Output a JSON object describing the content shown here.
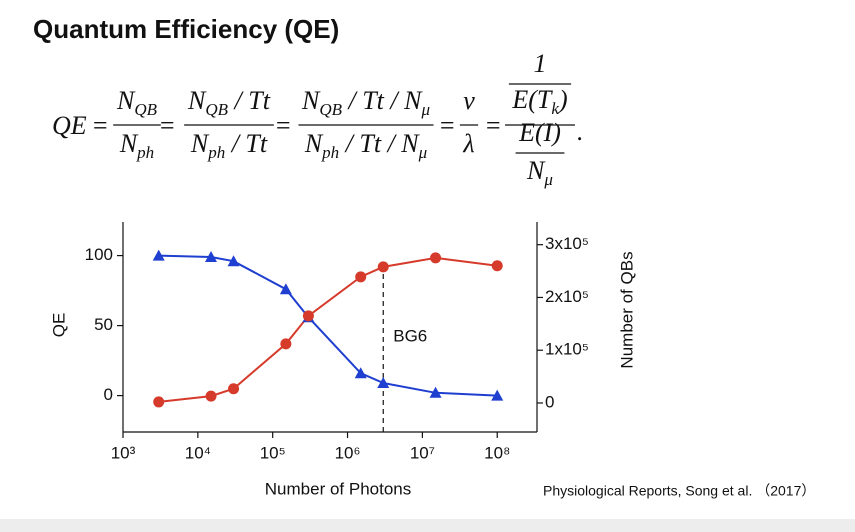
{
  "title": "Quantum Efficiency (QE)",
  "equation": {
    "lhs": "QE",
    "equals": "=",
    "end": ".",
    "terms": [
      {
        "num": [
          {
            "t": "N",
            "sub": "QB"
          }
        ],
        "den": [
          {
            "t": "N",
            "sub": "ph"
          }
        ]
      },
      {
        "num": [
          {
            "t": "N",
            "sub": "QB"
          },
          {
            "t": " / Tt"
          }
        ],
        "den": [
          {
            "t": "N",
            "sub": "ph"
          },
          {
            "t": " / Tt"
          }
        ]
      },
      {
        "num": [
          {
            "t": "N",
            "sub": "QB"
          },
          {
            "t": " / Tt / "
          },
          {
            "t": "N",
            "sub": "μ"
          }
        ],
        "den": [
          {
            "t": "N",
            "sub": "ph"
          },
          {
            "t": " / Tt / "
          },
          {
            "t": "N",
            "sub": "μ"
          }
        ]
      },
      {
        "num": [
          {
            "t": "ν"
          }
        ],
        "den": [
          {
            "t": "λ"
          }
        ]
      },
      {
        "num": {
          "num": [
            {
              "t": "1"
            }
          ],
          "den": [
            {
              "t": "E(T",
              "sub": "k"
            },
            {
              "t": ")"
            }
          ]
        },
        "den": {
          "num": [
            {
              "t": "E(I)"
            }
          ],
          "den": [
            {
              "t": "N",
              "sub": "μ"
            }
          ]
        }
      }
    ]
  },
  "citation": "Physiological Reports, Song et al. （2017）",
  "chart_data": {
    "type": "line",
    "x_label": "Number of Photons",
    "y_label": "QE",
    "y2_label": "Number of QBs",
    "x": [
      3000,
      15000,
      30000,
      150000,
      300000,
      1500000,
      3000000,
      15000000,
      100000000
    ],
    "xscale": "log",
    "xlim": [
      1000,
      340000000
    ],
    "xticks": [
      {
        "value": 1000,
        "label": "10³"
      },
      {
        "value": 10000,
        "label": "10⁴"
      },
      {
        "value": 100000,
        "label": "10⁵"
      },
      {
        "value": 1000000,
        "label": "10⁶"
      },
      {
        "value": 10000000,
        "label": "10⁷"
      },
      {
        "value": 100000000,
        "label": "10⁸"
      }
    ],
    "ylim": [
      -26,
      124
    ],
    "yticks": [
      0,
      50,
      100
    ],
    "y2lim": [
      -55000,
      343000
    ],
    "y2ticks": [
      0,
      {
        "value": 100000,
        "label": "1x10⁵"
      },
      {
        "value": 200000,
        "label": "2x10⁵"
      },
      {
        "value": 300000,
        "label": "3x10⁵"
      }
    ],
    "series": [
      {
        "name": "QE",
        "color": "#1f3fd0",
        "marker": "triangle",
        "values": [
          100,
          99,
          96,
          76,
          56,
          16,
          9,
          2,
          0
        ]
      },
      {
        "name": "Number of QBs",
        "color": "#d63a2a",
        "marker": "circle",
        "axis": "y2",
        "values": [
          2000,
          13000,
          27000,
          112000,
          165000,
          239000,
          258000,
          275000,
          260000
        ]
      }
    ],
    "annotation": {
      "text": "BG6",
      "x": 3000000
    }
  }
}
